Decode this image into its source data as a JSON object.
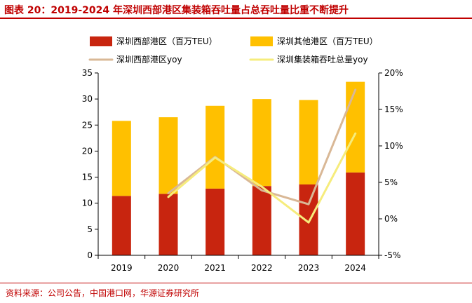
{
  "title": "图表 20：2019-2024 年深圳西部港区集装箱吞吐量占总吞吐量比重不断提升",
  "source": "资料来源：公司公告，中国港口网，华源证券研究所",
  "chart_data": {
    "type": "bar",
    "categories": [
      "2019",
      "2020",
      "2021",
      "2022",
      "2023",
      "2024"
    ],
    "ylim_left": [
      0,
      35
    ],
    "yticks_left": [
      "0",
      "5",
      "10",
      "15",
      "20",
      "25",
      "30",
      "35"
    ],
    "ylim_right": [
      -5,
      20
    ],
    "yticks_right": [
      "-5%",
      "0%",
      "5%",
      "10%",
      "15%",
      "20%"
    ],
    "legend_position": "top",
    "grid": false,
    "series": [
      {
        "name": "深圳西部港区（百万TEU）",
        "kind": "bar-stack",
        "color": "#c8250f",
        "values": [
          11.4,
          11.8,
          12.8,
          13.3,
          13.6,
          15.9
        ]
      },
      {
        "name": "深圳其他港区（百万TEU）",
        "kind": "bar-stack",
        "color": "#ffc000",
        "values": [
          14.4,
          14.7,
          15.9,
          16.7,
          16.2,
          17.4
        ]
      },
      {
        "name": "深圳西部港区yoy",
        "kind": "line",
        "axis": "right",
        "color": "#d9b896",
        "x": [
          "2020",
          "2021",
          "2022",
          "2023",
          "2024"
        ],
        "values": [
          3.5,
          8.5,
          3.9,
          2.0,
          17.7
        ]
      },
      {
        "name": "深圳集装箱吞吐总量yoy",
        "kind": "line",
        "axis": "right",
        "color": "#f6ec7c",
        "x": [
          "2020",
          "2021",
          "2022",
          "2023",
          "2024"
        ],
        "values": [
          3.0,
          8.4,
          4.4,
          -0.5,
          11.7
        ]
      }
    ]
  }
}
